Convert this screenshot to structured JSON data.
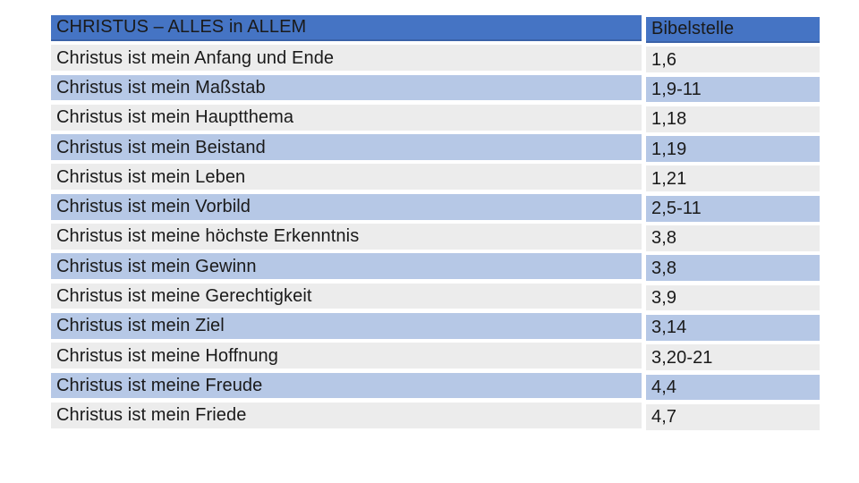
{
  "slide": {
    "table": {
      "topic_header": "CHRISTUS – ALLES in ALLEM",
      "reference_header": "Bibelstelle",
      "rows": [
        {
          "topic": "Christus ist mein Anfang und Ende",
          "reference": "1,6"
        },
        {
          "topic": "Christus ist mein Maßstab",
          "reference": "1,9-11"
        },
        {
          "topic": "Christus ist mein Hauptthema",
          "reference": "1,18"
        },
        {
          "topic": "Christus ist mein Beistand",
          "reference": "1,19"
        },
        {
          "topic": "Christus ist mein Leben",
          "reference": "1,21"
        },
        {
          "topic": "Christus ist mein Vorbild",
          "reference": "2,5-11"
        },
        {
          "topic": "Christus ist meine höchste Erkenntnis",
          "reference": "3,8"
        },
        {
          "topic": "Christus ist mein Gewinn",
          "reference": "3,8"
        },
        {
          "topic": "Christus ist meine Gerechtigkeit",
          "reference": "3,9"
        },
        {
          "topic": "Christus ist mein Ziel",
          "reference": "3,14"
        },
        {
          "topic": "Christus ist meine Hoffnung",
          "reference": "3,20-21"
        },
        {
          "topic": "Christus ist meine Freude",
          "reference": "4,4"
        },
        {
          "topic": "Christus ist mein Friede",
          "reference": "4,7"
        }
      ]
    },
    "colors": {
      "header_bg": "#4574C4",
      "header_edge": "#3A62A8",
      "band_blue": "#B6C8E6",
      "band_gray": "#ECECEC",
      "text": "#1A1A1A"
    }
  }
}
